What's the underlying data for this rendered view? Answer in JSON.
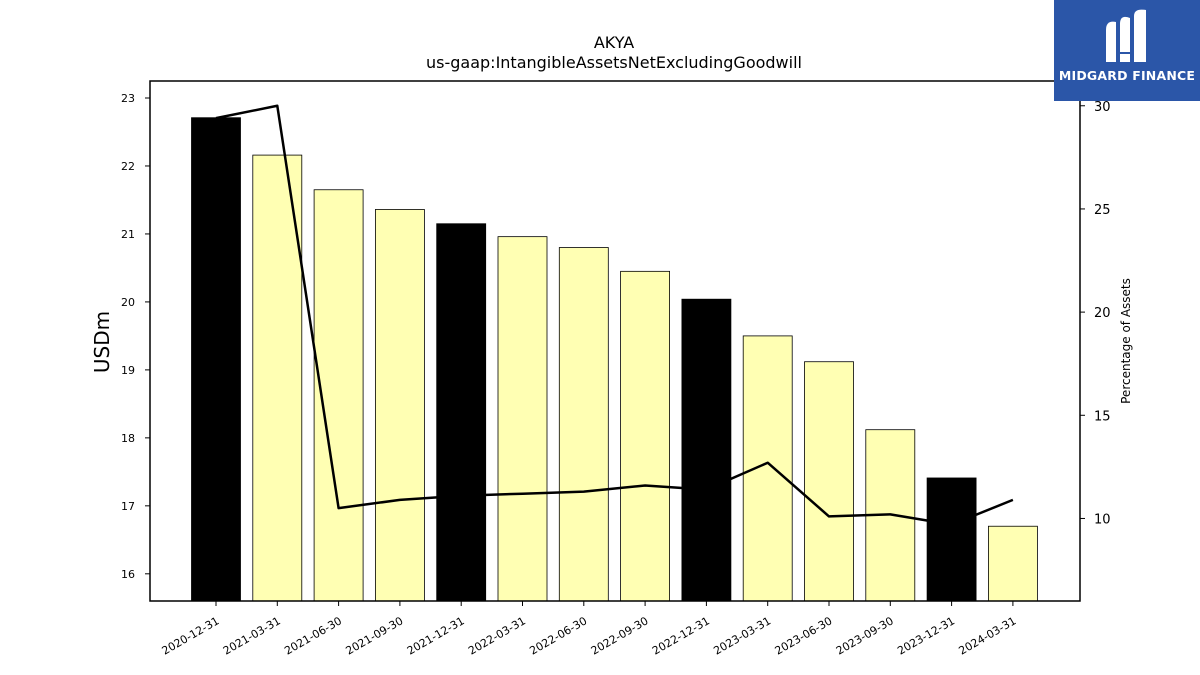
{
  "chart_data": {
    "type": "bar",
    "title": "AKYA",
    "subtitle": "us-gaap:IntangibleAssetsNetExcludingGoodwill",
    "ylabel": "USDm",
    "y2label": "Percentage of Assets",
    "ylim": [
      15.6,
      23.25
    ],
    "y2lim": [
      6.0,
      31.2
    ],
    "yticks": [
      16,
      17,
      18,
      19,
      20,
      21,
      22,
      23
    ],
    "y2ticks": [
      10,
      15,
      20,
      25,
      30
    ],
    "categories": [
      "2020-12-31",
      "2021-03-31",
      "2021-06-30",
      "2021-09-30",
      "2021-12-31",
      "2022-03-31",
      "2022-06-30",
      "2022-09-30",
      "2022-12-31",
      "2023-03-31",
      "2023-06-30",
      "2023-09-30",
      "2023-12-31",
      "2024-03-31"
    ],
    "values": [
      22.71,
      22.16,
      21.65,
      21.36,
      21.15,
      20.96,
      20.8,
      20.45,
      20.04,
      19.5,
      19.12,
      18.12,
      17.41,
      16.7
    ],
    "bar_colors": [
      "#000000",
      "#ffffb3",
      "#ffffb3",
      "#ffffb3",
      "#000000",
      "#ffffb3",
      "#ffffb3",
      "#ffffb3",
      "#000000",
      "#ffffb3",
      "#ffffb3",
      "#ffffb3",
      "#000000",
      "#ffffb3"
    ],
    "line_values": [
      29.4,
      30.0,
      10.5,
      10.9,
      11.1,
      11.2,
      11.3,
      11.6,
      11.4,
      12.7,
      10.1,
      10.2,
      9.7,
      10.9
    ],
    "line_color": "#000000",
    "grid": false
  },
  "logo": {
    "brand": "MIDGARD FINANCE"
  }
}
